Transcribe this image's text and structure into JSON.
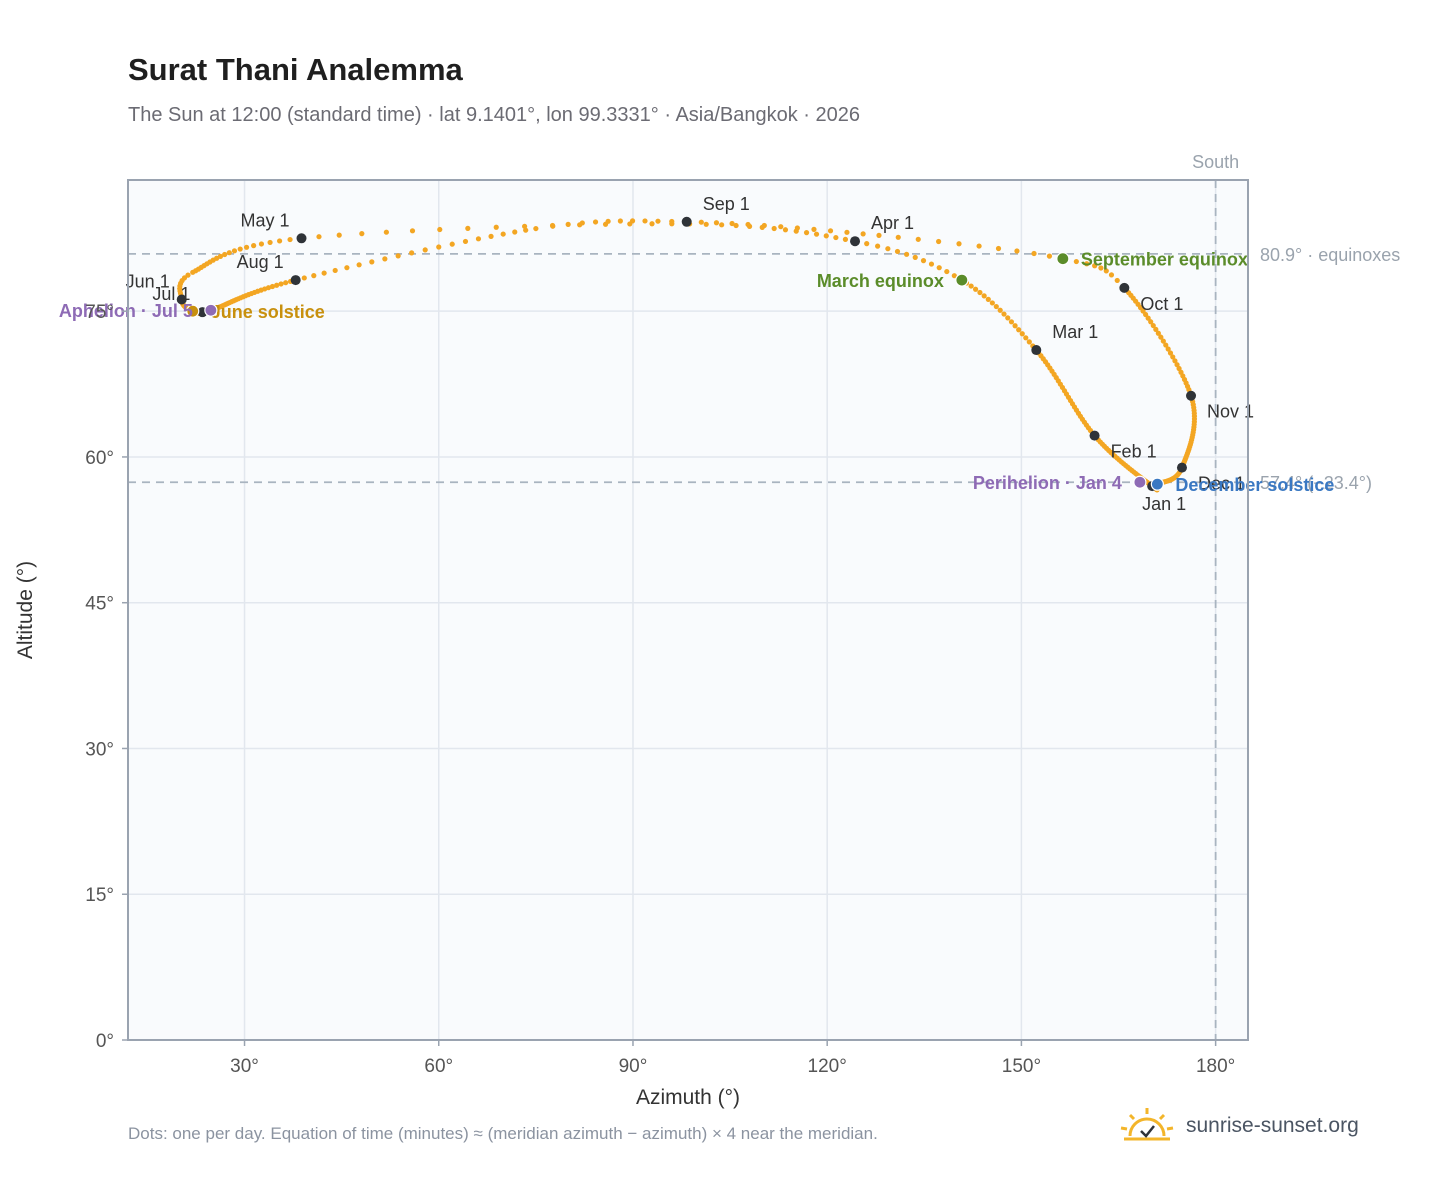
{
  "title": "Surat Thani Analemma",
  "subtitle": "The Sun at 12:00 (standard time) · lat 9.1401°, lon 99.3331° · Asia/Bangkok · 2026",
  "footnote": "Dots: one per day. Equation of time (minutes) ≈ (meridian azimuth − azimuth) × 4 near the meridian.",
  "brand": {
    "name": "sunrise-sunset.org",
    "icon": "sun-horizon-icon"
  },
  "colors": {
    "curve": "#f3a623",
    "month_marker": "#2f3338",
    "equinox": "#5b8c2a",
    "june_solstice": "#c8900e",
    "december_solstice": "#3a78c2",
    "apsis": "#8e6bb5",
    "plot_bg": "#f9fbfd",
    "frame": "#9aa3b0",
    "grid": "#e2e7ee",
    "reference_line": "#a9b4c0"
  },
  "chart_data": {
    "type": "scatter",
    "xlabel": "Azimuth (°)",
    "ylabel": "Altitude (°)",
    "xlim": [
      12,
      185
    ],
    "ylim": [
      0,
      88.5
    ],
    "xticks": [
      {
        "value": 30,
        "label": "30°"
      },
      {
        "value": 60,
        "label": "60°"
      },
      {
        "value": 90,
        "label": "90°"
      },
      {
        "value": 120,
        "label": "120°"
      },
      {
        "value": 150,
        "label": "150°"
      },
      {
        "value": 180,
        "label": "180°"
      }
    ],
    "yticks": [
      {
        "value": 0,
        "label": "0°"
      },
      {
        "value": 15,
        "label": "15°"
      },
      {
        "value": 30,
        "label": "30°"
      },
      {
        "value": 45,
        "label": "45°"
      },
      {
        "value": 60,
        "label": "60°"
      },
      {
        "value": 75,
        "label": "75°"
      }
    ],
    "grid": true,
    "reference_lines": [
      {
        "orientation": "vertical",
        "value": 180,
        "label": "South"
      },
      {
        "orientation": "horizontal",
        "value": 80.9,
        "label": "80.9° · equinoxes"
      },
      {
        "orientation": "horizontal",
        "value": 57.4,
        "label": "57.4° (−23.4°)"
      }
    ],
    "daily_path_keyframes": [
      {
        "day": 0,
        "az": 170.2,
        "alt": 57.0
      },
      {
        "day": 31,
        "az": 161.3,
        "alt": 62.2
      },
      {
        "day": 59,
        "az": 152.3,
        "alt": 71.0
      },
      {
        "day": 78,
        "az": 140.8,
        "alt": 78.2
      },
      {
        "day": 90,
        "az": 124.3,
        "alt": 82.2
      },
      {
        "day": 105,
        "az": 96,
        "alt": 84.0
      },
      {
        "day": 120,
        "az": 38.8,
        "alt": 82.5
      },
      {
        "day": 140,
        "az": 22,
        "alt": 79.0
      },
      {
        "day": 151,
        "az": 20.3,
        "alt": 76.2
      },
      {
        "day": 171,
        "az": 22.0,
        "alt": 75.0
      },
      {
        "day": 181,
        "az": 24.8,
        "alt": 75.1
      },
      {
        "day": 212,
        "az": 37.9,
        "alt": 78.2
      },
      {
        "day": 232,
        "az": 75,
        "alt": 83.5
      },
      {
        "day": 243,
        "az": 98.3,
        "alt": 84.2
      },
      {
        "day": 255,
        "az": 128,
        "alt": 82.8
      },
      {
        "day": 265,
        "az": 156.4,
        "alt": 80.4
      },
      {
        "day": 273,
        "az": 165.9,
        "alt": 77.4
      },
      {
        "day": 304,
        "az": 176.2,
        "alt": 66.3
      },
      {
        "day": 334,
        "az": 174.8,
        "alt": 58.9
      },
      {
        "day": 355,
        "az": 171.0,
        "alt": 57.2
      },
      {
        "day": 365,
        "az": 170.2,
        "alt": 57.0
      }
    ],
    "month_markers": [
      {
        "label": "Jan 1",
        "az": 170.2,
        "alt": 57.0,
        "label_pos": "below"
      },
      {
        "label": "Feb 1",
        "az": 161.3,
        "alt": 62.2,
        "label_pos": "below-right"
      },
      {
        "label": "Mar 1",
        "az": 152.3,
        "alt": 71.0,
        "label_pos": "right"
      },
      {
        "label": "Apr 1",
        "az": 124.3,
        "alt": 82.2,
        "label_pos": "right"
      },
      {
        "label": "May 1",
        "az": 38.8,
        "alt": 82.5,
        "label_pos": "left"
      },
      {
        "label": "Jun 1",
        "az": 20.3,
        "alt": 76.2,
        "label_pos": "left"
      },
      {
        "label": "Jul 1",
        "az": 23.5,
        "alt": 74.9,
        "label_pos": "left"
      },
      {
        "label": "Aug 1",
        "az": 37.9,
        "alt": 78.2,
        "label_pos": "left"
      },
      {
        "label": "Sep 1",
        "az": 98.3,
        "alt": 84.2,
        "label_pos": "right"
      },
      {
        "label": "Oct 1",
        "az": 165.9,
        "alt": 77.4,
        "label_pos": "below-right"
      },
      {
        "label": "Nov 1",
        "az": 176.2,
        "alt": 66.3,
        "label_pos": "below-right"
      },
      {
        "label": "Dec 1",
        "az": 174.8,
        "alt": 58.9,
        "label_pos": "below-right"
      }
    ],
    "events": [
      {
        "label": "March equinox",
        "az": 140.8,
        "alt": 78.2,
        "color_key": "equinox",
        "label_pos": "left"
      },
      {
        "label": "June solstice",
        "az": 22.0,
        "alt": 75.0,
        "color_key": "june_solstice",
        "label_pos": "right"
      },
      {
        "label": "September equinox",
        "az": 156.4,
        "alt": 80.4,
        "color_key": "equinox",
        "label_pos": "right"
      },
      {
        "label": "December solstice",
        "az": 171.0,
        "alt": 57.2,
        "color_key": "december_solstice",
        "label_pos": "right"
      },
      {
        "label": "Perihelion · Jan 4",
        "az": 168.3,
        "alt": 57.4,
        "color_key": "apsis",
        "label_pos": "left"
      },
      {
        "label": "Aphelion · Jul 5",
        "az": 24.8,
        "alt": 75.1,
        "color_key": "apsis",
        "label_pos": "left"
      }
    ]
  }
}
